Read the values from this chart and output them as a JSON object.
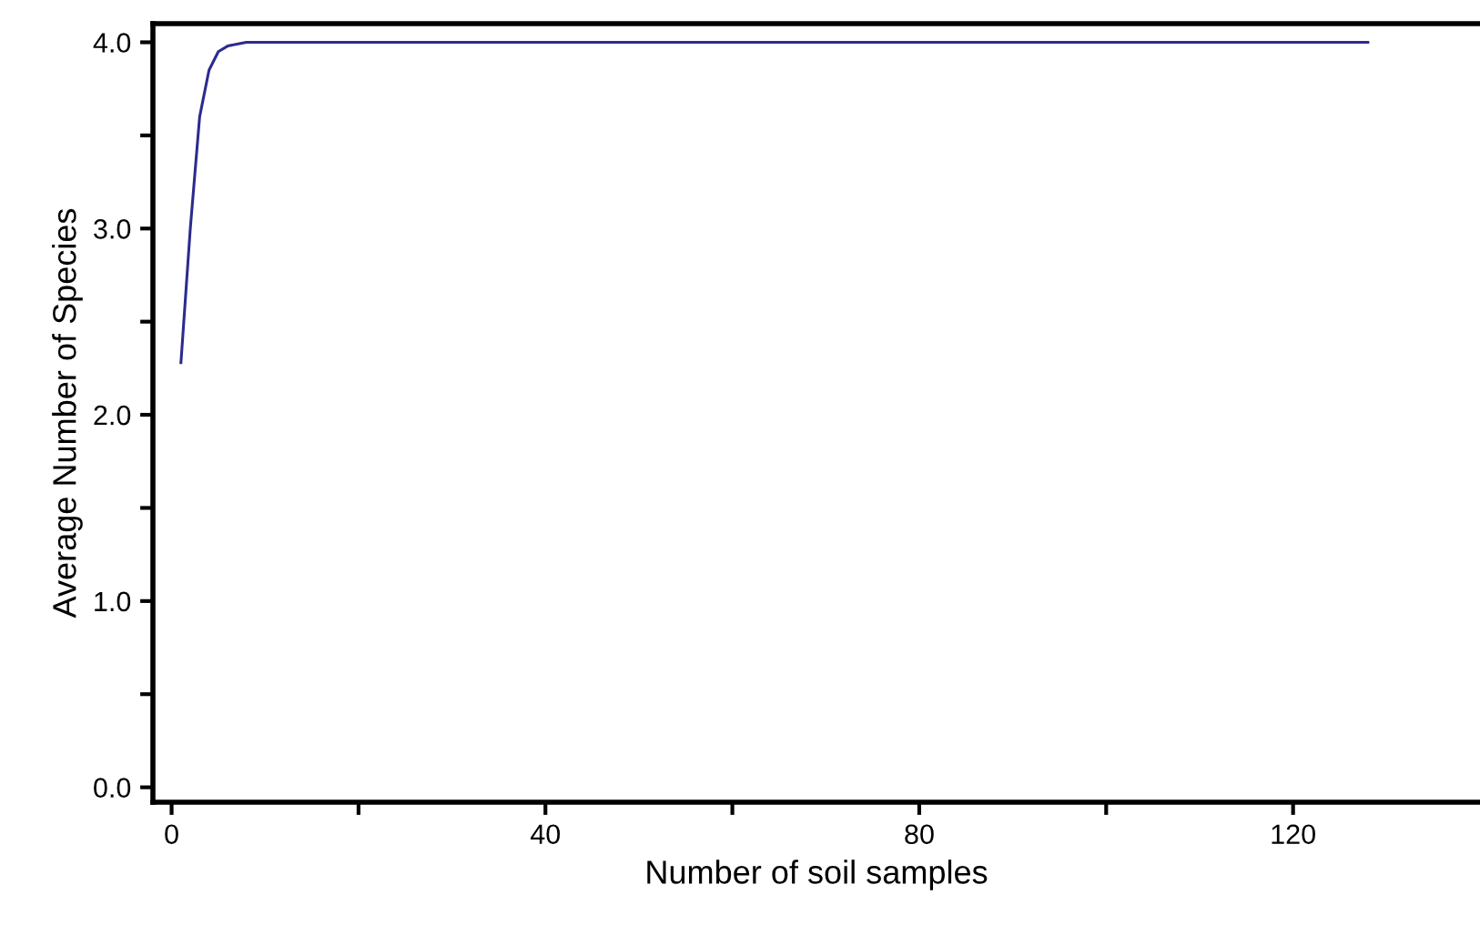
{
  "chart_data": {
    "type": "line",
    "xlabel": "Number of soil samples",
    "ylabel": "Average Number of Species",
    "x": [
      1,
      2,
      3,
      4,
      5,
      6,
      7,
      8,
      128
    ],
    "series": [
      {
        "color": "#2b2b8f",
        "values": [
          2.28,
          3.0,
          3.6,
          3.85,
          3.95,
          3.98,
          3.99,
          4.0,
          4.0
        ]
      }
    ],
    "xlim": [
      -2,
      140
    ],
    "ylim": [
      -0.08,
      4.1
    ],
    "xticks": [
      0,
      {
        "value": 20,
        "label": null
      },
      40,
      {
        "value": 60,
        "label": null
      },
      80,
      {
        "value": 100,
        "label": null
      },
      120
    ],
    "yticks": [
      {
        "value": 0,
        "label": "0.0"
      },
      {
        "value": 0.5,
        "label": null
      },
      {
        "value": 1,
        "label": "1.0"
      },
      {
        "value": 1.5,
        "label": null
      },
      {
        "value": 2,
        "label": "2.0"
      },
      {
        "value": 2.5,
        "label": null
      },
      {
        "value": 3,
        "label": "3.0"
      },
      {
        "value": 3.5,
        "label": null
      },
      {
        "value": 4,
        "label": "4.0"
      }
    ],
    "grid": false,
    "legend": false,
    "marker": "none",
    "line_style": "solid"
  }
}
